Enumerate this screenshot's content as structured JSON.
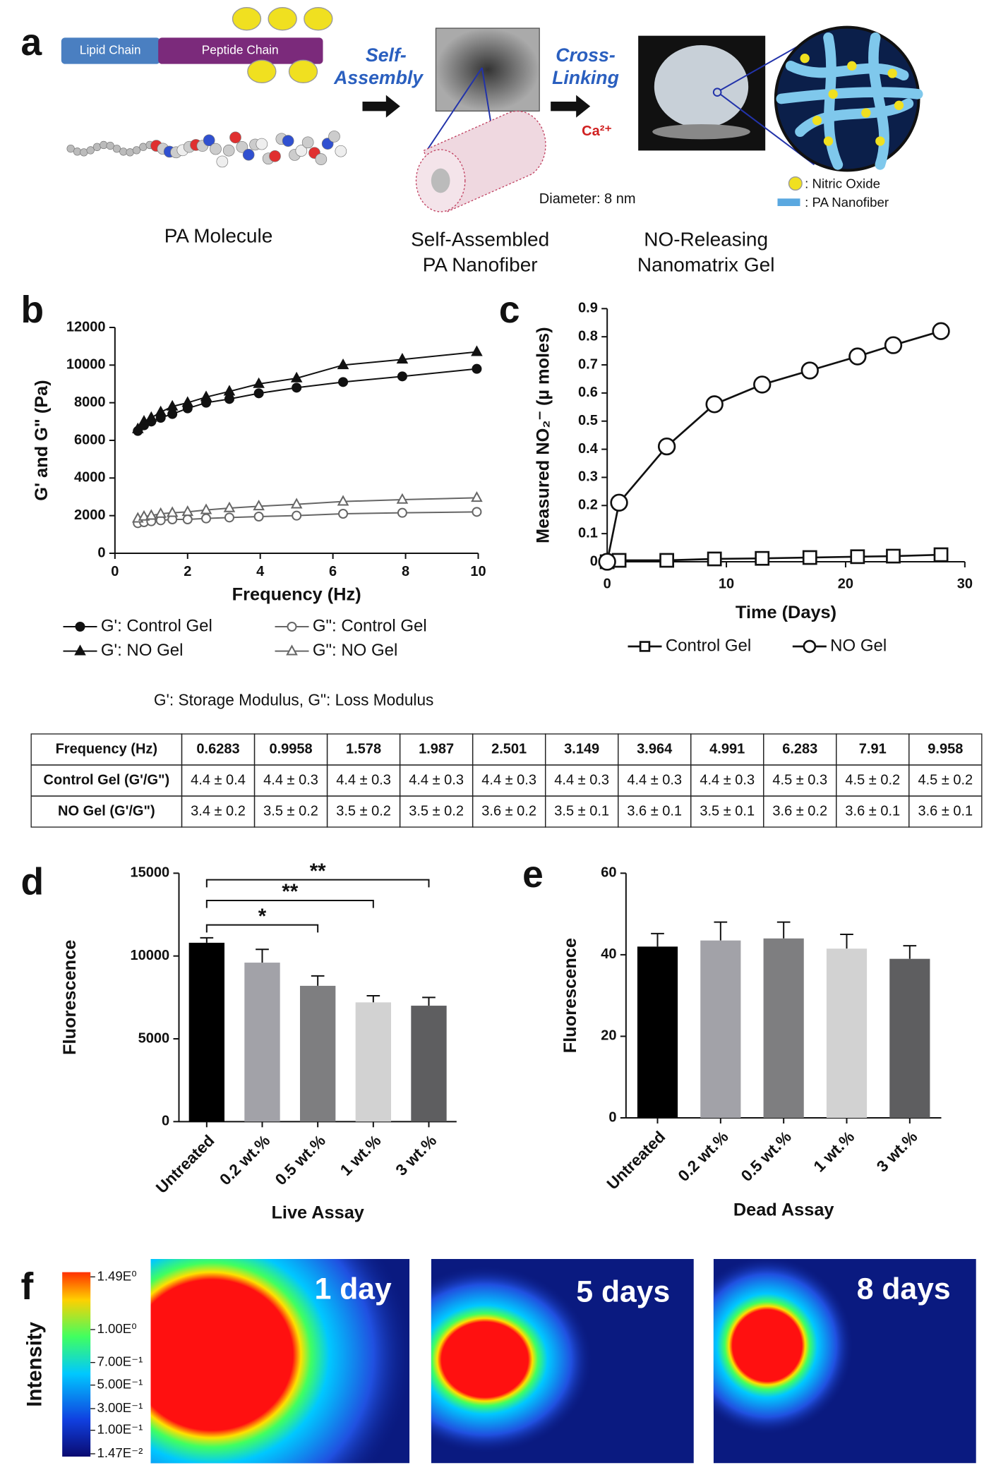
{
  "panel_a": {
    "label": "a",
    "lipid": "Lipid Chain",
    "peptide": "Peptide Chain",
    "step1": [
      "Self-",
      "Assembly"
    ],
    "step2": [
      "Cross-",
      "Linking"
    ],
    "ion": "Ca²⁺",
    "diameter": "Diameter: 8 nm",
    "legend": [
      ": Nitric Oxide",
      ": PA Nanofiber"
    ],
    "captions": [
      [
        "PA Molecule"
      ],
      [
        "Self-Assembled",
        "PA Nanofiber"
      ],
      [
        "NO-Releasing",
        "Nanomatrix Gel"
      ]
    ]
  },
  "chart_data": [
    {
      "type": "line",
      "panel": "b",
      "xlabel": "Frequency (Hz)",
      "ylabel": "G' and G\" (Pa)",
      "x": [
        0.63,
        0.8,
        1,
        1.26,
        1.58,
        2,
        2.51,
        3.15,
        3.96,
        5,
        6.28,
        7.91,
        9.96
      ],
      "series": [
        {
          "name": "G': Control Gel",
          "color": "#111111",
          "marker": "filled-circle",
          "values": [
            6500,
            6800,
            7000,
            7200,
            7400,
            7700,
            8000,
            8200,
            8500,
            8800,
            9100,
            9400,
            9800
          ]
        },
        {
          "name": "G': NO Gel",
          "color": "#111111",
          "marker": "filled-triangle",
          "values": [
            6600,
            7000,
            7200,
            7500,
            7800,
            8000,
            8300,
            8600,
            9000,
            9300,
            10000,
            10300,
            10700
          ]
        },
        {
          "name": "G\": Control Gel",
          "color": "#666666",
          "marker": "open-circle",
          "values": [
            1600,
            1650,
            1700,
            1750,
            1800,
            1800,
            1850,
            1900,
            1950,
            2000,
            2100,
            2150,
            2200
          ]
        },
        {
          "name": "G\": NO Gel",
          "color": "#666666",
          "marker": "open-triangle",
          "values": [
            1850,
            1950,
            2000,
            2100,
            2150,
            2200,
            2300,
            2400,
            2500,
            2600,
            2750,
            2850,
            2950
          ]
        }
      ],
      "xlim": [
        0,
        10
      ],
      "xticks": [
        0,
        2,
        4,
        6,
        8,
        10
      ],
      "ylim": [
        0,
        12000
      ],
      "yticks": [
        0,
        2000,
        4000,
        6000,
        8000,
        10000,
        12000
      ],
      "legend": "bottom",
      "note": "G': Storage Modulus,    G\": Loss Modulus"
    },
    {
      "type": "line",
      "panel": "c",
      "xlabel": "Time (Days)",
      "ylabel": "Measured NO₂⁻ (µ moles)",
      "x": [
        0,
        1,
        5,
        9,
        13,
        17,
        21,
        24,
        28
      ],
      "series": [
        {
          "name": "Control Gel",
          "color": "#111111",
          "marker": "open-square",
          "values": [
            0,
            0.005,
            0.005,
            0.01,
            0.012,
            0.015,
            0.018,
            0.02,
            0.025
          ]
        },
        {
          "name": "NO Gel",
          "color": "#111111",
          "marker": "open-circle",
          "values": [
            0,
            0.21,
            0.41,
            0.56,
            0.63,
            0.68,
            0.73,
            0.77,
            0.82
          ]
        }
      ],
      "xlim": [
        0,
        30
      ],
      "xticks": [
        0,
        10,
        20,
        30
      ],
      "ylim": [
        0,
        0.9
      ],
      "yticks": [
        0,
        0.1,
        0.2,
        0.3,
        0.4,
        0.5,
        0.6,
        0.7,
        0.8,
        0.9
      ],
      "legend": "bottom"
    },
    {
      "type": "bar",
      "panel": "d",
      "xlabel": "Live Assay",
      "ylabel": "Fluorescence",
      "categories": [
        "Untreated",
        "0.2 wt.%",
        "0.5 wt.%",
        "1 wt.%",
        "3 wt.%"
      ],
      "values": [
        10800,
        9600,
        8200,
        7200,
        7000
      ],
      "errors": [
        300,
        800,
        600,
        400,
        500
      ],
      "colors": [
        "#000000",
        "#a2a2a8",
        "#7e7e80",
        "#d2d2d2",
        "#5e5e60"
      ],
      "ylim": [
        0,
        15000
      ],
      "yticks": [
        0,
        5000,
        10000,
        15000
      ],
      "annotations": [
        {
          "text": "*"
        },
        {
          "text": "**"
        },
        {
          "text": "**"
        }
      ]
    },
    {
      "type": "bar",
      "panel": "e",
      "xlabel": "Dead Assay",
      "ylabel": "Fluorescence",
      "categories": [
        "Untreated",
        "0.2 wt.%",
        "0.5 wt.%",
        "1 wt.%",
        "3 wt.%"
      ],
      "values": [
        42,
        43.5,
        44,
        41.5,
        39
      ],
      "errors": [
        3.2,
        4.5,
        4,
        3.5,
        3.2
      ],
      "colors": [
        "#000000",
        "#a2a2a8",
        "#7e7e80",
        "#d2d2d2",
        "#5e5e60"
      ],
      "ylim": [
        0,
        60
      ],
      "yticks": [
        0,
        20,
        40,
        60
      ]
    }
  ],
  "table": {
    "header": [
      "Frequency (Hz)",
      "0.6283",
      "0.9958",
      "1.578",
      "1.987",
      "2.501",
      "3.149",
      "3.964",
      "4.991",
      "6.283",
      "7.91",
      "9.958"
    ],
    "rows": [
      [
        "Control Gel (G'/G\")",
        "4.4 ± 0.4",
        "4.4 ± 0.3",
        "4.4 ± 0.3",
        "4.4 ± 0.3",
        "4.4 ± 0.3",
        "4.4 ± 0.3",
        "4.4 ± 0.3",
        "4.4 ± 0.3",
        "4.5 ± 0.3",
        "4.5 ± 0.2",
        "4.5 ± 0.2"
      ],
      [
        "NO Gel (G'/G\")",
        "3.4 ± 0.2",
        "3.5 ± 0.2",
        "3.5 ± 0.2",
        "3.5 ± 0.2",
        "3.6 ± 0.2",
        "3.5 ± 0.1",
        "3.6 ± 0.1",
        "3.5 ± 0.1",
        "3.6 ± 0.2",
        "3.6 ± 0.1",
        "3.6 ± 0.1"
      ]
    ]
  },
  "panel_f": {
    "label": "f",
    "colorbar_label": "Intensity",
    "colorbar_ticks": [
      "1.49E⁰",
      "1.00E⁰",
      "7.00E⁻¹",
      "5.00E⁻¹",
      "3.00E⁻¹",
      "1.00E⁻¹",
      "1.47E⁻²"
    ],
    "images": [
      "1 day",
      "5 days",
      "8 days"
    ]
  }
}
